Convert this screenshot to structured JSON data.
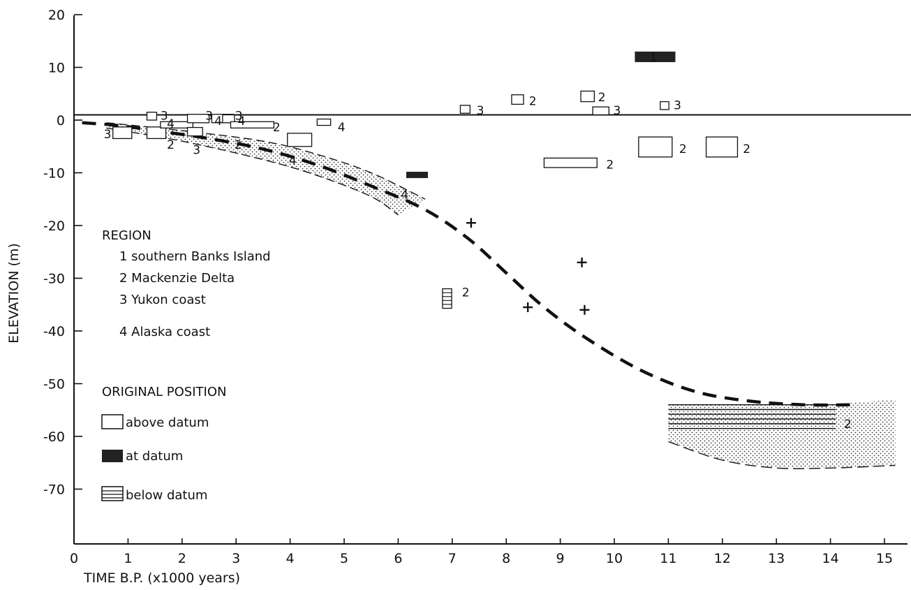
{
  "chart_data": {
    "type": "scatter",
    "xlabel": "TIME B.P. (x1000 years)",
    "ylabel": "ELEVATION (m)",
    "xlim": [
      0,
      15.3
    ],
    "ylim": [
      -80,
      20
    ],
    "x_ticks": [
      0,
      1,
      2,
      3,
      4,
      5,
      6,
      7,
      8,
      9,
      10,
      11,
      12,
      13,
      14,
      15
    ],
    "y_ticks": [
      20,
      10,
      0,
      -10,
      -20,
      -30,
      -40,
      -50,
      -60,
      -70
    ],
    "y_tick_labels": [
      "20",
      "10",
      "0",
      "-10",
      "-20",
      "-30",
      "-40",
      "-50",
      "-60",
      "-70"
    ],
    "grid": false,
    "datum_line_y": 1,
    "curve_points": [
      [
        0.15,
        -0.5
      ],
      [
        0.8,
        -1
      ],
      [
        1.5,
        -2
      ],
      [
        2.5,
        -3.5
      ],
      [
        3.5,
        -5.5
      ],
      [
        4.5,
        -8.5
      ],
      [
        5.5,
        -12.5
      ],
      [
        6.5,
        -17
      ],
      [
        7.3,
        -22.5
      ],
      [
        8,
        -29
      ],
      [
        8.7,
        -35.5
      ],
      [
        9.5,
        -41.5
      ],
      [
        10.5,
        -47.5
      ],
      [
        11.5,
        -51.5
      ],
      [
        12.5,
        -53.3
      ],
      [
        13.5,
        -54
      ],
      [
        14.5,
        -54
      ]
    ],
    "band_upper": [
      [
        0.6,
        -0.5
      ],
      [
        2,
        -2
      ],
      [
        3.5,
        -4
      ],
      [
        4.5,
        -6.5
      ],
      [
        5.5,
        -10
      ],
      [
        6.5,
        -15
      ]
    ],
    "band_lower": [
      [
        0.6,
        -1.5
      ],
      [
        2,
        -4
      ],
      [
        3.5,
        -7.5
      ],
      [
        4.5,
        -10.5
      ],
      [
        5.5,
        -14.5
      ],
      [
        6,
        -18
      ]
    ],
    "basin_upper": [
      [
        11,
        -54
      ],
      [
        12.5,
        -54
      ],
      [
        14,
        -54
      ],
      [
        15.2,
        -53
      ]
    ],
    "basin_lower": [
      [
        11,
        -61
      ],
      [
        12,
        -64.5
      ],
      [
        13,
        -66
      ],
      [
        14,
        -66
      ],
      [
        15.2,
        -65.5
      ]
    ],
    "samples": [
      {
        "type": "at",
        "x": 10.38,
        "y": 11,
        "w": 0.75,
        "h": 2,
        "region": "1"
      },
      {
        "type": "at",
        "x": 6.15,
        "y": -11,
        "w": 0.4,
        "h": 1.2,
        "region": ""
      },
      {
        "type": "above",
        "x": 7.15,
        "y": 1.3,
        "w": 0.18,
        "h": 1.5,
        "region": "3"
      },
      {
        "type": "above",
        "x": 8.1,
        "y": 3,
        "w": 0.22,
        "h": 1.8,
        "region": "2"
      },
      {
        "type": "above",
        "x": 9.38,
        "y": 3.5,
        "w": 0.25,
        "h": 2,
        "region": "2"
      },
      {
        "type": "above",
        "x": 9.6,
        "y": 1,
        "w": 0.3,
        "h": 1.5,
        "region": "3"
      },
      {
        "type": "above",
        "x": 10.85,
        "y": 2,
        "w": 0.16,
        "h": 1.5,
        "region": "3"
      },
      {
        "type": "above",
        "x": 10.45,
        "y": -7,
        "w": 0.62,
        "h": 3.8,
        "region": "2"
      },
      {
        "type": "above",
        "x": 11.7,
        "y": -7,
        "w": 0.58,
        "h": 3.8,
        "region": "2"
      },
      {
        "type": "above",
        "x": 8.7,
        "y": -9,
        "w": 0.98,
        "h": 1.8,
        "region": "2"
      },
      {
        "type": "above",
        "x": 0.72,
        "y": -3.5,
        "w": 0.35,
        "h": 2.2,
        "region": "3"
      },
      {
        "type": "above",
        "x": 1.35,
        "y": 0,
        "w": 0.18,
        "h": 1.5,
        "region": "3"
      },
      {
        "type": "above",
        "x": 1.35,
        "y": -3.5,
        "w": 0.35,
        "h": 2.2,
        "region": "2"
      },
      {
        "type": "above",
        "x": 1.6,
        "y": -1.5,
        "w": 0.6,
        "h": 1.2,
        "region": "4"
      },
      {
        "type": "above",
        "x": 2.1,
        "y": -0.5,
        "w": 0.4,
        "h": 1.6,
        "region": "3"
      },
      {
        "type": "above",
        "x": 2.55,
        "y": -0.5,
        "w": 0.4,
        "h": 1.6,
        "region": "4"
      },
      {
        "type": "above",
        "x": 2.75,
        "y": -0.5,
        "w": 0.22,
        "h": 1.5,
        "region": "3"
      },
      {
        "type": "above",
        "x": 2.9,
        "y": -1.5,
        "w": 0.8,
        "h": 1.2,
        "region": "2"
      },
      {
        "type": "above",
        "x": 2.1,
        "y": -3,
        "w": 0.28,
        "h": 1.6,
        "region": "3"
      },
      {
        "type": "above",
        "x": 3.95,
        "y": -5,
        "w": 0.45,
        "h": 2.5,
        "region": ""
      },
      {
        "type": "above",
        "x": 4.5,
        "y": -1,
        "w": 0.25,
        "h": 1.2,
        "region": "4"
      },
      {
        "type": "below",
        "x": 6.82,
        "y": -35.7,
        "w": 0.17,
        "h": 3.7,
        "region": "2"
      }
    ],
    "plus_points": [
      [
        7.35,
        -19.5
      ],
      [
        8.4,
        -35.5
      ],
      [
        9.4,
        -27
      ],
      [
        9.45,
        -36
      ]
    ],
    "annotations": [
      {
        "x": 10.65,
        "y": 12,
        "text": "1"
      },
      {
        "x": 7.45,
        "y": 2,
        "text": "3"
      },
      {
        "x": 8.42,
        "y": 3.8,
        "text": "2"
      },
      {
        "x": 9.7,
        "y": 4.5,
        "text": "2"
      },
      {
        "x": 9.98,
        "y": 2,
        "text": "3"
      },
      {
        "x": 11.1,
        "y": 3,
        "text": "3"
      },
      {
        "x": 11.2,
        "y": -5.3,
        "text": "2"
      },
      {
        "x": 12.38,
        "y": -5.3,
        "text": "2"
      },
      {
        "x": 9.85,
        "y": -8.3,
        "text": "2"
      },
      {
        "x": 7.18,
        "y": -32.5,
        "text": "2"
      },
      {
        "x": 14.25,
        "y": -57.5,
        "text": "2"
      },
      {
        "x": 0.55,
        "y": -2.5,
        "text": "3"
      },
      {
        "x": 1.6,
        "y": 1,
        "text": "3"
      },
      {
        "x": 1.72,
        "y": -0.5,
        "text": "4"
      },
      {
        "x": 1.72,
        "y": -4.5,
        "text": "2"
      },
      {
        "x": 2.43,
        "y": 1,
        "text": "3"
      },
      {
        "x": 2.6,
        "y": 0,
        "text": "4"
      },
      {
        "x": 2.98,
        "y": 1,
        "text": "3"
      },
      {
        "x": 3.03,
        "y": 0,
        "text": "4"
      },
      {
        "x": 3.68,
        "y": -1.2,
        "text": "2"
      },
      {
        "x": 2.2,
        "y": -5.5,
        "text": "3"
      },
      {
        "x": 2.97,
        "y": -4.5,
        "text": "2"
      },
      {
        "x": 3.98,
        "y": -7.5,
        "text": "4"
      },
      {
        "x": 4.88,
        "y": -1.2,
        "text": "4"
      },
      {
        "x": 6.05,
        "y": -14,
        "text": "4"
      }
    ],
    "legend": {
      "region_title": "REGION",
      "regions": [
        "1 southern Banks Island",
        "2 Mackenzie Delta",
        "3 Yukon coast",
        "4 Alaska coast"
      ],
      "position_title": "ORIGINAL POSITION",
      "positions": [
        {
          "type": "above",
          "label": "above datum"
        },
        {
          "type": "at",
          "label": "at datum"
        },
        {
          "type": "below",
          "label": "below datum"
        }
      ]
    }
  }
}
